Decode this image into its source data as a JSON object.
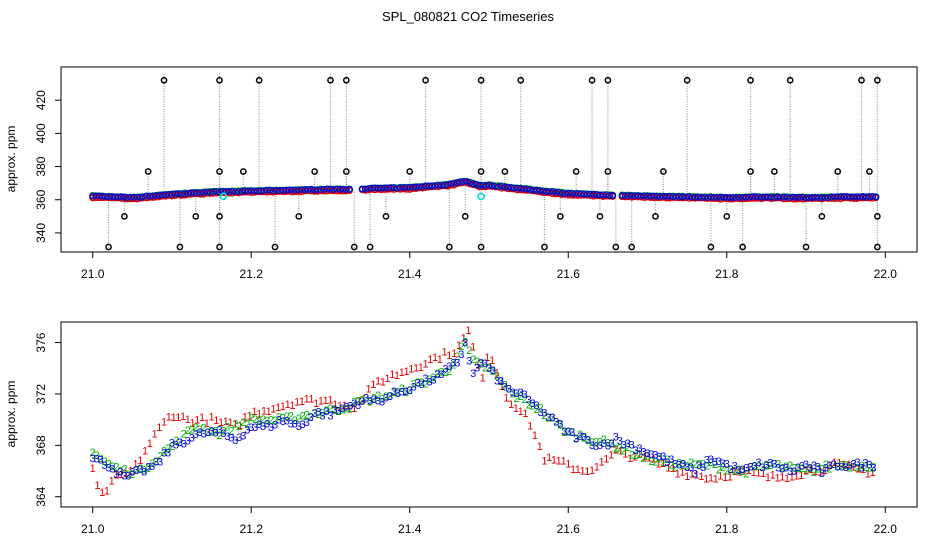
{
  "title": "SPL_080821  CO2 Timeseries",
  "colors": {
    "series1": "#e00000",
    "series2": "#00b000",
    "series3": "#0000e0",
    "marker": "#000000",
    "spike": "#9a9a9a",
    "cyan": "#00e0e0"
  },
  "chart_data": [
    {
      "type": "scatter",
      "title": "SPL_080821  CO2 Timeseries",
      "ylabel": "approx. ppm",
      "xlabel": "",
      "xlim": [
        20.96,
        22.04
      ],
      "ylim": [
        328.5,
        440
      ],
      "xticks": [
        "21.0",
        "21.2",
        "21.4",
        "21.6",
        "21.8",
        "22.0"
      ],
      "yticks": [
        "340",
        "360",
        "380",
        "400",
        "420"
      ],
      "ytick_values": [
        340,
        360,
        380,
        400,
        420
      ],
      "xtick_values": [
        21.0,
        21.2,
        21.4,
        21.6,
        21.8,
        22.0
      ],
      "baseline": {
        "x": [
          21.0,
          21.05,
          21.1,
          21.15,
          21.2,
          21.25,
          21.3,
          21.33,
          21.35,
          21.4,
          21.45,
          21.47,
          21.49,
          21.5,
          21.55,
          21.6,
          21.65,
          21.7,
          21.75,
          21.8,
          21.85,
          21.9,
          21.95,
          21.99
        ],
        "y": [
          367,
          366,
          368,
          369.5,
          370,
          370.5,
          371,
          371,
          371.5,
          372,
          374,
          376,
          373,
          373.5,
          371,
          368.5,
          367.5,
          367,
          366.5,
          366,
          366.5,
          366,
          366.5,
          366.5
        ]
      },
      "high_markers": [
        21.09,
        21.16,
        21.21,
        21.3,
        21.32,
        21.42,
        21.49,
        21.54,
        21.63,
        21.65,
        21.75,
        21.83,
        21.88,
        21.97,
        21.99
      ],
      "low_markers": [
        21.02,
        21.11,
        21.16,
        21.23,
        21.33,
        21.35,
        21.45,
        21.49,
        21.57,
        21.66,
        21.68,
        21.78,
        21.82,
        21.9,
        21.99
      ],
      "mid_high_markers": [
        21.07,
        21.16,
        21.19,
        21.28,
        21.32,
        21.4,
        21.49,
        21.52,
        21.61,
        21.65,
        21.72,
        21.83,
        21.86,
        21.94,
        21.98
      ],
      "mid_low_markers": [
        21.04,
        21.13,
        21.16,
        21.26,
        21.37,
        21.47,
        21.59,
        21.64,
        21.71,
        21.8,
        21.92,
        21.99
      ],
      "cyan_points": [
        {
          "x": 21.165,
          "y": 362
        },
        {
          "x": 21.49,
          "y": 362
        }
      ]
    },
    {
      "type": "scatter",
      "title": "",
      "ylabel": "approx. ppm",
      "xlabel": "",
      "xlim": [
        20.96,
        22.04
      ],
      "ylim": [
        363.2,
        377.6
      ],
      "xticks": [
        "21.0",
        "21.2",
        "21.4",
        "21.6",
        "21.8",
        "22.0"
      ],
      "yticks": [
        "364",
        "368",
        "372",
        "376"
      ],
      "ytick_values": [
        364,
        368,
        372,
        376
      ],
      "xtick_values": [
        21.0,
        21.2,
        21.4,
        21.6,
        21.8,
        22.0
      ],
      "series": [
        {
          "name": "1",
          "x": [
            21.0,
            21.01,
            21.03,
            21.05,
            21.08,
            21.1,
            21.12,
            21.15,
            21.18,
            21.2,
            21.23,
            21.26,
            21.3,
            21.33,
            21.36,
            21.4,
            21.44,
            21.46,
            21.475,
            21.49,
            21.5,
            21.52,
            21.55,
            21.57,
            21.6,
            21.62,
            21.64,
            21.66,
            21.7,
            21.74,
            21.78,
            21.82,
            21.86,
            21.9,
            21.94,
            21.98
          ],
          "y": [
            366,
            364,
            365.5,
            366,
            369,
            370.5,
            370,
            370,
            369.5,
            370.5,
            371,
            371.5,
            371.5,
            371,
            373,
            374,
            375,
            375.5,
            377,
            373,
            375.5,
            372,
            370,
            367,
            366.5,
            366,
            366.5,
            367.5,
            367,
            366,
            365.5,
            366,
            365.5,
            366,
            366.5,
            366
          ]
        },
        {
          "name": "2",
          "x": [
            21.0,
            21.02,
            21.04,
            21.06,
            21.08,
            21.1,
            21.13,
            21.16,
            21.2,
            21.24,
            21.28,
            21.32,
            21.34,
            21.38,
            21.42,
            21.45,
            21.47,
            21.48,
            21.5,
            21.53,
            21.56,
            21.6,
            21.63,
            21.66,
            21.7,
            21.74,
            21.78,
            21.82,
            21.86,
            21.9,
            21.94,
            21.98
          ],
          "y": [
            367.5,
            366.5,
            366,
            366,
            367,
            368,
            369.5,
            369,
            370,
            370,
            370.5,
            371,
            371.5,
            372,
            373,
            374,
            376,
            374.5,
            374,
            372,
            371,
            369,
            368.5,
            368,
            367,
            366.5,
            366.5,
            366,
            366.5,
            366,
            366.5,
            366.5
          ]
        },
        {
          "name": "3",
          "x": [
            21.0,
            21.02,
            21.04,
            21.06,
            21.08,
            21.1,
            21.12,
            21.14,
            21.16,
            21.18,
            21.2,
            21.22,
            21.24,
            21.26,
            21.28,
            21.3,
            21.32,
            21.34,
            21.36,
            21.38,
            21.4,
            21.42,
            21.44,
            21.46,
            21.47,
            21.48,
            21.49,
            21.5,
            21.52,
            21.54,
            21.56,
            21.58,
            21.6,
            21.62,
            21.64,
            21.66,
            21.68,
            21.7,
            21.72,
            21.74,
            21.76,
            21.78,
            21.8,
            21.82,
            21.84,
            21.86,
            21.88,
            21.9,
            21.92,
            21.94,
            21.96,
            21.98
          ],
          "y": [
            367,
            366.5,
            365.5,
            366,
            366.5,
            368,
            368.5,
            369,
            369,
            368.5,
            369.5,
            369.5,
            370,
            369.5,
            370.5,
            370.5,
            371,
            371.5,
            371.5,
            372,
            372.5,
            373,
            373.5,
            374.5,
            376,
            373.5,
            374.5,
            374,
            372.5,
            372,
            371,
            370,
            369,
            368.5,
            368,
            368.5,
            368,
            367.5,
            367,
            366.5,
            366,
            367,
            366.5,
            366,
            366.5,
            366.5,
            366,
            366.5,
            366,
            366.5,
            366.5,
            366.5
          ]
        }
      ]
    }
  ]
}
